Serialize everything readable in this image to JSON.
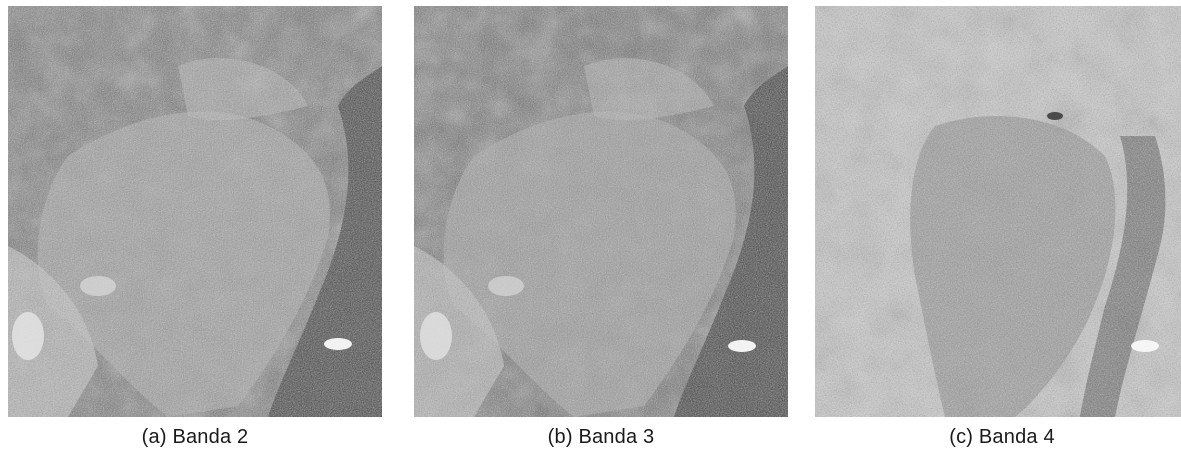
{
  "panels": [
    {
      "caption": "(a) Banda 2",
      "tone": "dark"
    },
    {
      "caption": "(b) Banda 3",
      "tone": "dark"
    },
    {
      "caption": "(c) Banda 4",
      "tone": "light"
    }
  ]
}
